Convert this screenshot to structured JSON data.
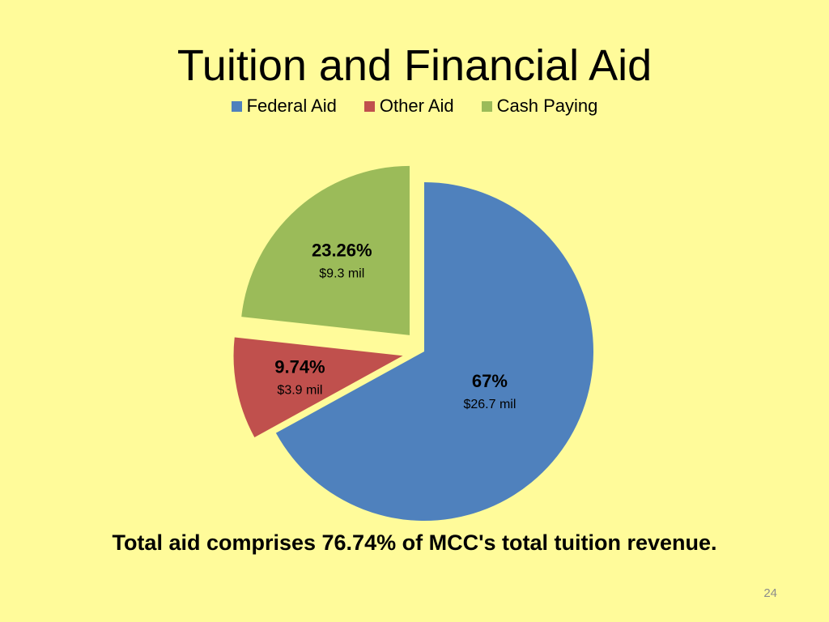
{
  "slide": {
    "title": "Tuition and Financial Aid",
    "summary": "Total aid comprises  76.74% of MCC's total tuition revenue.",
    "slide_number": "24",
    "background_color": "#FFFB9A"
  },
  "chart_data": {
    "type": "pie",
    "title": "Tuition and Financial Aid",
    "legend_position": "top",
    "slices": [
      {
        "name": "Federal Aid",
        "percent": 67,
        "percent_label": "67%",
        "amount_label": "$26.7 mil",
        "color": "#4F81BD",
        "exploded": false
      },
      {
        "name": "Other Aid",
        "percent": 9.74,
        "percent_label": "9.74%",
        "amount_label": "$3.9 mil",
        "color": "#C0504D",
        "exploded": true
      },
      {
        "name": "Cash Paying",
        "percent": 23.26,
        "percent_label": "23.26%",
        "amount_label": "$9.3 mil",
        "color": "#9BBB59",
        "exploded": true
      }
    ]
  }
}
